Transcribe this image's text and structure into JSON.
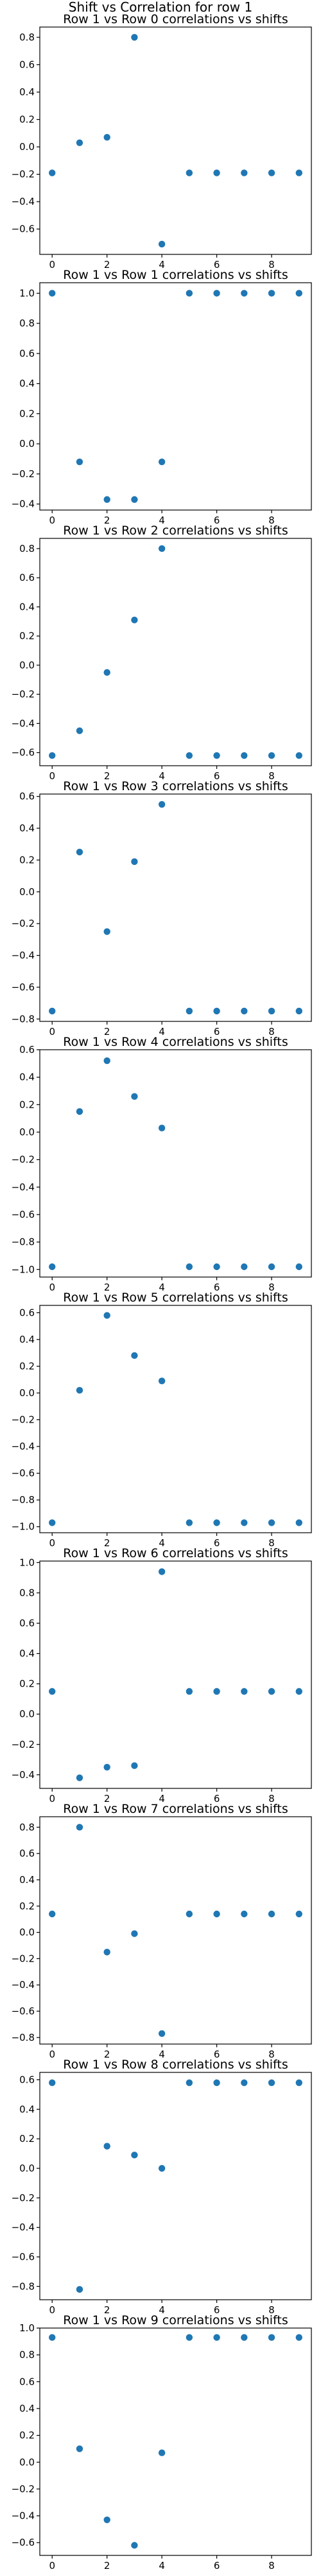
{
  "figure": {
    "suptitle": "Shift vs Correlation for row 1"
  },
  "style": {
    "marker_color": "#1f77b4"
  },
  "chart_data": [
    {
      "type": "scatter",
      "title": "Row 1 vs Row 0 correlations vs shifts",
      "xlabel": "",
      "ylabel": "",
      "x": [
        0,
        1,
        2,
        3,
        4,
        5,
        6,
        7,
        8,
        9
      ],
      "y": [
        -0.19,
        0.03,
        0.07,
        0.8,
        -0.71,
        -0.19,
        -0.19,
        -0.19,
        -0.19,
        -0.19
      ],
      "xticks": [
        0,
        2,
        4,
        6,
        8
      ],
      "yticks": [
        -0.6,
        -0.4,
        -0.2,
        0.0,
        0.2,
        0.4,
        0.6,
        0.8
      ],
      "ytick_labels": [
        "−0.6",
        "−0.4",
        "−0.2",
        "0.0",
        "0.2",
        "0.4",
        "0.6",
        "0.8"
      ],
      "xlim": [
        -0.45,
        9.45
      ],
      "ylim": [
        -0.785,
        0.875
      ],
      "grid": false
    },
    {
      "type": "scatter",
      "title": "Row 1 vs Row 1 correlations vs shifts",
      "xlabel": "",
      "ylabel": "",
      "x": [
        0,
        1,
        2,
        3,
        4,
        5,
        6,
        7,
        8,
        9
      ],
      "y": [
        1.0,
        -0.12,
        -0.37,
        -0.37,
        -0.12,
        1.0,
        1.0,
        1.0,
        1.0,
        1.0
      ],
      "xticks": [
        0,
        2,
        4,
        6,
        8
      ],
      "yticks": [
        -0.4,
        -0.2,
        0.0,
        0.2,
        0.4,
        0.6,
        0.8,
        1.0
      ],
      "ytick_labels": [
        "−0.4",
        "−0.2",
        "0.0",
        "0.2",
        "0.4",
        "0.6",
        "0.8",
        "1.0"
      ],
      "xlim": [
        -0.45,
        9.45
      ],
      "ylim": [
        -0.44,
        1.07
      ],
      "grid": false
    },
    {
      "type": "scatter",
      "title": "Row 1 vs Row 2 correlations vs shifts",
      "xlabel": "",
      "ylabel": "",
      "x": [
        0,
        1,
        2,
        3,
        4,
        5,
        6,
        7,
        8,
        9
      ],
      "y": [
        -0.62,
        -0.45,
        -0.05,
        0.31,
        0.8,
        -0.62,
        -0.62,
        -0.62,
        -0.62,
        -0.62
      ],
      "xticks": [
        0,
        2,
        4,
        6,
        8
      ],
      "yticks": [
        -0.6,
        -0.4,
        -0.2,
        0.0,
        0.2,
        0.4,
        0.6,
        0.8
      ],
      "ytick_labels": [
        "−0.6",
        "−0.4",
        "−0.2",
        "0.0",
        "0.2",
        "0.4",
        "0.6",
        "0.8"
      ],
      "xlim": [
        -0.45,
        9.45
      ],
      "ylim": [
        -0.69,
        0.87
      ],
      "grid": false
    },
    {
      "type": "scatter",
      "title": "Row 1 vs Row 3 correlations vs shifts",
      "xlabel": "",
      "ylabel": "",
      "x": [
        0,
        1,
        2,
        3,
        4,
        5,
        6,
        7,
        8,
        9
      ],
      "y": [
        -0.75,
        0.25,
        -0.25,
        0.19,
        0.55,
        -0.75,
        -0.75,
        -0.75,
        -0.75,
        -0.75
      ],
      "xticks": [
        0,
        2,
        4,
        6,
        8
      ],
      "yticks": [
        -0.8,
        -0.6,
        -0.4,
        -0.2,
        0.0,
        0.2,
        0.4,
        0.6
      ],
      "ytick_labels": [
        "−0.8",
        "−0.6",
        "−0.4",
        "−0.2",
        "0.0",
        "0.2",
        "0.4",
        "0.6"
      ],
      "xlim": [
        -0.45,
        9.45
      ],
      "ylim": [
        -0.815,
        0.615
      ],
      "grid": false
    },
    {
      "type": "scatter",
      "title": "Row 1 vs Row 4 correlations vs shifts",
      "xlabel": "",
      "ylabel": "",
      "x": [
        0,
        1,
        2,
        3,
        4,
        5,
        6,
        7,
        8,
        9
      ],
      "y": [
        -0.98,
        0.15,
        0.52,
        0.26,
        0.03,
        -0.98,
        -0.98,
        -0.98,
        -0.98,
        -0.98
      ],
      "xticks": [
        0,
        2,
        4,
        6,
        8
      ],
      "yticks": [
        -1.0,
        -0.8,
        -0.6,
        -0.4,
        -0.2,
        0.0,
        0.2,
        0.4,
        0.6
      ],
      "ytick_labels": [
        "−1.0",
        "−0.8",
        "−0.6",
        "−0.4",
        "−0.2",
        "0.0",
        "0.2",
        "0.4",
        "0.6"
      ],
      "xlim": [
        -0.45,
        9.45
      ],
      "ylim": [
        -1.055,
        0.6
      ],
      "grid": false
    },
    {
      "type": "scatter",
      "title": "Row 1 vs Row 5 correlations vs shifts",
      "xlabel": "",
      "ylabel": "",
      "x": [
        0,
        1,
        2,
        3,
        4,
        5,
        6,
        7,
        8,
        9
      ],
      "y": [
        -0.97,
        0.02,
        0.58,
        0.28,
        0.09,
        -0.97,
        -0.97,
        -0.97,
        -0.97,
        -0.97
      ],
      "xticks": [
        0,
        2,
        4,
        6,
        8
      ],
      "yticks": [
        -1.0,
        -0.8,
        -0.6,
        -0.4,
        -0.2,
        0.0,
        0.2,
        0.4,
        0.6
      ],
      "ytick_labels": [
        "−1.0",
        "−0.8",
        "−0.6",
        "−0.4",
        "−0.2",
        "0.0",
        "0.2",
        "0.4",
        "0.6"
      ],
      "xlim": [
        -0.45,
        9.45
      ],
      "ylim": [
        -1.045,
        0.655
      ],
      "grid": false
    },
    {
      "type": "scatter",
      "title": "Row 1 vs Row 6 correlations vs shifts",
      "xlabel": "",
      "ylabel": "",
      "x": [
        0,
        1,
        2,
        3,
        4,
        5,
        6,
        7,
        8,
        9
      ],
      "y": [
        0.15,
        -0.42,
        -0.35,
        -0.34,
        0.94,
        0.15,
        0.15,
        0.15,
        0.15,
        0.15
      ],
      "xticks": [
        0,
        2,
        4,
        6,
        8
      ],
      "yticks": [
        -0.4,
        -0.2,
        0.0,
        0.2,
        0.4,
        0.6,
        0.8,
        1.0
      ],
      "ytick_labels": [
        "−0.4",
        "−0.2",
        "0.0",
        "0.2",
        "0.4",
        "0.6",
        "0.8",
        "1.0"
      ],
      "xlim": [
        -0.45,
        9.45
      ],
      "ylim": [
        -0.49,
        1.01
      ],
      "grid": false
    },
    {
      "type": "scatter",
      "title": "Row 1 vs Row 7 correlations vs shifts",
      "xlabel": "",
      "ylabel": "",
      "x": [
        0,
        1,
        2,
        3,
        4,
        5,
        6,
        7,
        8,
        9
      ],
      "y": [
        0.14,
        0.8,
        -0.15,
        -0.01,
        -0.77,
        0.14,
        0.14,
        0.14,
        0.14,
        0.14
      ],
      "xticks": [
        0,
        2,
        4,
        6,
        8
      ],
      "yticks": [
        -0.8,
        -0.6,
        -0.4,
        -0.2,
        0.0,
        0.2,
        0.4,
        0.6,
        0.8
      ],
      "ytick_labels": [
        "−0.8",
        "−0.6",
        "−0.4",
        "−0.2",
        "0.0",
        "0.2",
        "0.4",
        "0.6",
        "0.8"
      ],
      "xlim": [
        -0.45,
        9.45
      ],
      "ylim": [
        -0.85,
        0.88
      ],
      "grid": false
    },
    {
      "type": "scatter",
      "title": "Row 1 vs Row 8 correlations vs shifts",
      "xlabel": "",
      "ylabel": "",
      "x": [
        0,
        1,
        2,
        3,
        4,
        5,
        6,
        7,
        8,
        9
      ],
      "y": [
        0.58,
        -0.82,
        0.15,
        0.09,
        0.0,
        0.58,
        0.58,
        0.58,
        0.58,
        0.58
      ],
      "xticks": [
        0,
        2,
        4,
        6,
        8
      ],
      "yticks": [
        -0.8,
        -0.6,
        -0.4,
        -0.2,
        0.0,
        0.2,
        0.4,
        0.6
      ],
      "ytick_labels": [
        "−0.8",
        "−0.6",
        "−0.4",
        "−0.2",
        "0.0",
        "0.2",
        "0.4",
        "0.6"
      ],
      "xlim": [
        -0.45,
        9.45
      ],
      "ylim": [
        -0.89,
        0.65
      ],
      "grid": false
    },
    {
      "type": "scatter",
      "title": "Row 1 vs Row 9 correlations vs shifts",
      "xlabel": "",
      "ylabel": "",
      "x": [
        0,
        1,
        2,
        3,
        4,
        5,
        6,
        7,
        8,
        9
      ],
      "y": [
        0.93,
        0.1,
        -0.43,
        -0.62,
        0.07,
        0.93,
        0.93,
        0.93,
        0.93,
        0.93
      ],
      "xticks": [
        0,
        2,
        4,
        6,
        8
      ],
      "yticks": [
        -0.6,
        -0.4,
        -0.2,
        0.0,
        0.2,
        0.4,
        0.6,
        0.8,
        1.0
      ],
      "ytick_labels": [
        "−0.6",
        "−0.4",
        "−0.2",
        "0.0",
        "0.2",
        "0.4",
        "0.6",
        "0.8",
        "1.0"
      ],
      "xlim": [
        -0.45,
        9.45
      ],
      "ylim": [
        -0.695,
        1.0
      ],
      "grid": false
    }
  ]
}
